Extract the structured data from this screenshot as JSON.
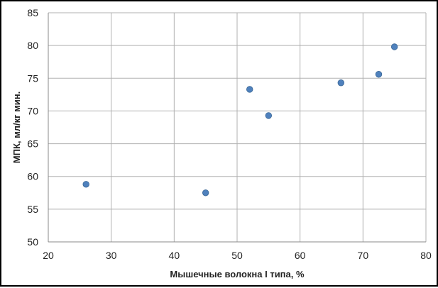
{
  "chart_data": {
    "type": "scatter",
    "title": "",
    "xlabel": "Мышечные волокна I типа, %",
    "ylabel": "МПК, мл/кг мин.",
    "xlim": [
      20,
      80
    ],
    "ylim": [
      50,
      85
    ],
    "x_ticks": [
      20,
      30,
      40,
      50,
      60,
      70,
      80
    ],
    "y_ticks": [
      50,
      55,
      60,
      65,
      70,
      75,
      80,
      85
    ],
    "grid": true,
    "legend": "none",
    "marker_color": "#4f81bd",
    "points": [
      {
        "x": 26,
        "y": 58.8
      },
      {
        "x": 45,
        "y": 57.5
      },
      {
        "x": 52,
        "y": 73.3
      },
      {
        "x": 55,
        "y": 69.3
      },
      {
        "x": 66.5,
        "y": 74.3
      },
      {
        "x": 72.5,
        "y": 75.6
      },
      {
        "x": 75,
        "y": 79.8
      }
    ]
  }
}
